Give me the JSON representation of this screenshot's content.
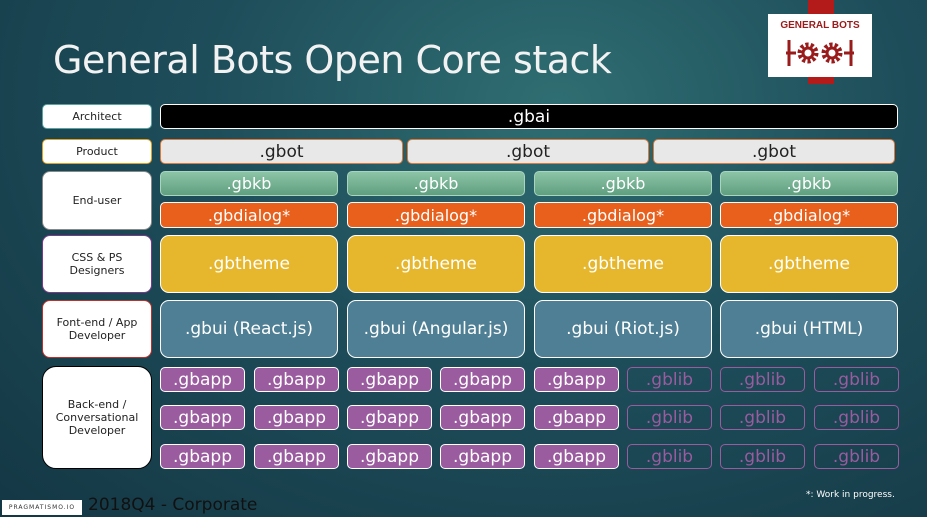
{
  "title": "General Bots Open Core stack",
  "logo": {
    "text": "GENERAL BOTS",
    "brand_color": "#b31b1b"
  },
  "roles": [
    "Architect",
    "Product",
    "End-user",
    "CSS & PS Designers",
    "Font-end / App Developer",
    "Back-end / Conversational Developer"
  ],
  "gbai": ".gbai",
  "gbot": [
    ".gbot",
    ".gbot",
    ".gbot"
  ],
  "gbkb": [
    ".gbkb",
    ".gbkb",
    ".gbkb",
    ".gbkb"
  ],
  "gbdialog": [
    ".gbdialog*",
    ".gbdialog*",
    ".gbdialog*",
    ".gbdialog*"
  ],
  "gbtheme": [
    ".gbtheme",
    ".gbtheme",
    ".gbtheme",
    ".gbtheme"
  ],
  "gbui": [
    ".gbui (React.js)",
    ".gbui (Angular.js)",
    ".gbui (Riot.js)",
    ".gbui (HTML)"
  ],
  "apps": [
    [
      ".gbapp",
      ".gbapp",
      ".gbapp",
      ".gbapp",
      ".gbapp",
      ".gblib",
      ".gblib",
      ".gblib"
    ],
    [
      ".gbapp",
      ".gbapp",
      ".gbapp",
      ".gbapp",
      ".gbapp",
      ".gblib",
      ".gblib",
      ".gblib"
    ],
    [
      ".gbapp",
      ".gbapp",
      ".gbapp",
      ".gbapp",
      ".gbapp",
      ".gblib",
      ".gblib",
      ".gblib"
    ]
  ],
  "footer": {
    "brand": "PRAGMATISMO.IO",
    "text": "2018Q4 - Corporate",
    "note": "*: Work in progress."
  }
}
